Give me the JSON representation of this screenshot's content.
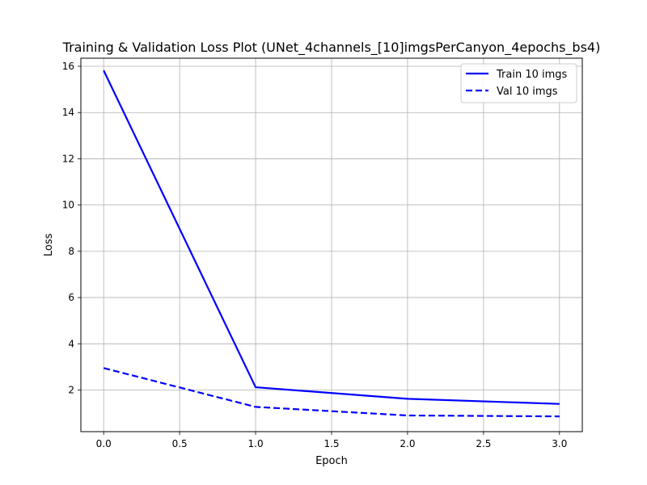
{
  "chart_data": {
    "type": "line",
    "title": "Training & Validation Loss Plot (UNet_4channels_[10]imgsPerCanyon_4epochs_bs4)",
    "xlabel": "Epoch",
    "ylabel": "Loss",
    "x": [
      0,
      1,
      2,
      3
    ],
    "xlim": [
      -0.15,
      3.15
    ],
    "ylim": [
      0.2,
      16.35
    ],
    "xticks": [
      "0.0",
      "0.5",
      "1.0",
      "1.5",
      "2.0",
      "2.5",
      "3.0"
    ],
    "xtick_values": [
      0,
      0.5,
      1,
      1.5,
      2,
      2.5,
      3
    ],
    "yticks": [
      "2",
      "4",
      "6",
      "8",
      "10",
      "12",
      "14",
      "16"
    ],
    "ytick_values": [
      2,
      4,
      6,
      8,
      10,
      12,
      14,
      16
    ],
    "grid": true,
    "legend_position": "top-right",
    "series": [
      {
        "name": "Train 10 imgs",
        "values": [
          15.82,
          2.12,
          1.62,
          1.4
        ],
        "color": "#0000ff",
        "style": "solid"
      },
      {
        "name": "Val 10 imgs",
        "values": [
          2.95,
          1.27,
          0.9,
          0.86
        ],
        "color": "#0000ff",
        "style": "dashed"
      }
    ]
  }
}
